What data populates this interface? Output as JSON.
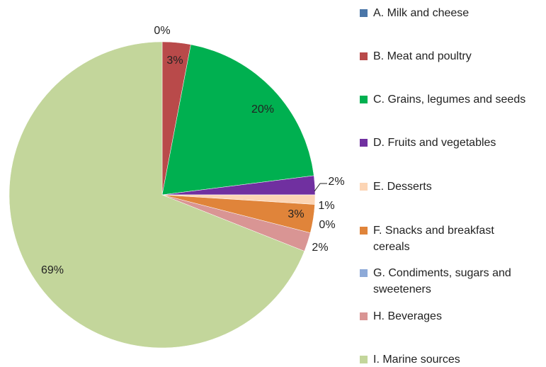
{
  "chart_data": {
    "type": "pie",
    "categories": [
      "A. Milk and cheese",
      "B. Meat and poultry",
      "C. Grains, legumes and seeds",
      "D. Fruits and vegetables",
      "E. Desserts",
      "F. Snacks and breakfast cereals",
      "G. Condiments, sugars and sweeteners",
      "H. Beverages",
      "I. Marine sources"
    ],
    "values": [
      0,
      3,
      20,
      2,
      1,
      3,
      0,
      2,
      69
    ],
    "colors": [
      "#4a76a8",
      "#b94a4a",
      "#00b050",
      "#7030a0",
      "#fcd5b5",
      "#e0843a",
      "#8eaad8",
      "#d99594",
      "#c3d69b"
    ],
    "unit": "%",
    "legend": "right"
  }
}
